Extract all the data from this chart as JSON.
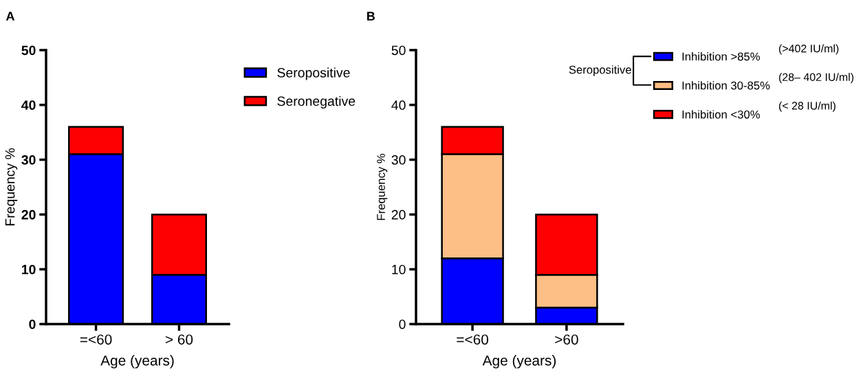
{
  "chart_data": [
    {
      "type": "bar",
      "title": "A",
      "xlabel": "Age (years)",
      "ylabel": "Frequency %",
      "categories": [
        "=<60",
        "> 60"
      ],
      "stacked": true,
      "ylim": [
        0,
        50
      ],
      "yticks": [
        0,
        10,
        20,
        30,
        40,
        50
      ],
      "legend": "top right",
      "grid": false,
      "series": [
        {
          "name": "Seropositive",
          "color": "#0000ff",
          "values": [
            31,
            9
          ]
        },
        {
          "name": "Seronegative",
          "color": "#ff0000",
          "values": [
            5,
            11
          ]
        }
      ]
    },
    {
      "type": "bar",
      "title": "B",
      "xlabel": "Age (years)",
      "ylabel": "Frequency %",
      "categories": [
        "=<60",
        ">60"
      ],
      "stacked": true,
      "ylim": [
        0,
        50
      ],
      "yticks": [
        0,
        10,
        20,
        30,
        40,
        50
      ],
      "legend": "right",
      "grid": false,
      "annotations": [
        "Seropositive",
        "(>402 IU/ml)",
        "(28– 402 IU/ml)",
        "(< 28 IU/ml)"
      ],
      "series": [
        {
          "name": "Inhibition >85%",
          "color": "#0000ff",
          "values": [
            12,
            3
          ]
        },
        {
          "name": "Inhibition 30-85%",
          "color": "#fdbf85",
          "values": [
            19,
            6
          ]
        },
        {
          "name": "Inhibition <30%",
          "color": "#ff0000",
          "values": [
            5,
            11
          ]
        }
      ]
    }
  ]
}
